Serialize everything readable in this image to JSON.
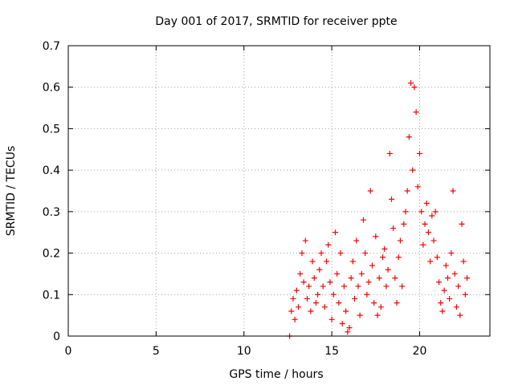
{
  "chart_data": {
    "type": "scatter",
    "title": "Day 001 of 2017, SRMTID for receiver ppte",
    "xlabel": "GPS time / hours",
    "ylabel": "SRMTID / TECUs",
    "xlim": [
      0,
      24
    ],
    "ylim": [
      0,
      0.7
    ],
    "xticks": [
      0,
      5,
      10,
      15,
      20
    ],
    "yticks": [
      0,
      0.1,
      0.2,
      0.3,
      0.4,
      0.5,
      0.6,
      0.7
    ],
    "xtick_labels": [
      "0",
      "5",
      "10",
      "15",
      "20"
    ],
    "ytick_labels": [
      "0",
      "0.1",
      "0.2",
      "0.3",
      "0.4",
      "0.5",
      "0.6",
      "0.7"
    ],
    "grid": true,
    "marker": "+",
    "series": [
      {
        "name": "SRMTID",
        "color": "#ff0000",
        "points": [
          [
            12.6,
            0.0
          ],
          [
            12.7,
            0.06
          ],
          [
            12.8,
            0.09
          ],
          [
            12.9,
            0.04
          ],
          [
            13.0,
            0.11
          ],
          [
            13.1,
            0.07
          ],
          [
            13.2,
            0.15
          ],
          [
            13.3,
            0.2
          ],
          [
            13.4,
            0.13
          ],
          [
            13.5,
            0.23
          ],
          [
            13.6,
            0.09
          ],
          [
            13.7,
            0.12
          ],
          [
            13.8,
            0.06
          ],
          [
            13.9,
            0.18
          ],
          [
            14.0,
            0.14
          ],
          [
            14.1,
            0.08
          ],
          [
            14.2,
            0.1
          ],
          [
            14.3,
            0.16
          ],
          [
            14.4,
            0.2
          ],
          [
            14.5,
            0.12
          ],
          [
            14.6,
            0.07
          ],
          [
            14.7,
            0.18
          ],
          [
            14.8,
            0.22
          ],
          [
            14.9,
            0.13
          ],
          [
            15.0,
            0.04
          ],
          [
            15.1,
            0.1
          ],
          [
            15.2,
            0.25
          ],
          [
            15.3,
            0.15
          ],
          [
            15.4,
            0.08
          ],
          [
            15.5,
            0.2
          ],
          [
            15.6,
            0.03
          ],
          [
            15.7,
            0.12
          ],
          [
            15.8,
            0.06
          ],
          [
            15.9,
            0.01
          ],
          [
            16.0,
            0.02
          ],
          [
            16.1,
            0.14
          ],
          [
            16.2,
            0.18
          ],
          [
            16.3,
            0.09
          ],
          [
            16.4,
            0.23
          ],
          [
            16.5,
            0.12
          ],
          [
            16.6,
            0.05
          ],
          [
            16.7,
            0.15
          ],
          [
            16.8,
            0.28
          ],
          [
            16.9,
            0.2
          ],
          [
            17.0,
            0.1
          ],
          [
            17.1,
            0.13
          ],
          [
            17.2,
            0.35
          ],
          [
            17.3,
            0.17
          ],
          [
            17.4,
            0.08
          ],
          [
            17.5,
            0.24
          ],
          [
            17.6,
            0.05
          ],
          [
            17.7,
            0.14
          ],
          [
            17.8,
            0.07
          ],
          [
            17.9,
            0.19
          ],
          [
            18.0,
            0.21
          ],
          [
            18.1,
            0.12
          ],
          [
            18.2,
            0.16
          ],
          [
            18.3,
            0.44
          ],
          [
            18.4,
            0.33
          ],
          [
            18.5,
            0.26
          ],
          [
            18.6,
            0.14
          ],
          [
            18.7,
            0.08
          ],
          [
            18.8,
            0.19
          ],
          [
            18.9,
            0.23
          ],
          [
            19.0,
            0.12
          ],
          [
            19.1,
            0.27
          ],
          [
            19.2,
            0.3
          ],
          [
            19.3,
            0.35
          ],
          [
            19.4,
            0.48
          ],
          [
            19.5,
            0.61
          ],
          [
            19.6,
            0.4
          ],
          [
            19.7,
            0.6
          ],
          [
            19.8,
            0.54
          ],
          [
            19.9,
            0.36
          ],
          [
            20.0,
            0.44
          ],
          [
            20.1,
            0.3
          ],
          [
            20.2,
            0.22
          ],
          [
            20.3,
            0.27
          ],
          [
            20.4,
            0.32
          ],
          [
            20.5,
            0.25
          ],
          [
            20.6,
            0.18
          ],
          [
            20.7,
            0.29
          ],
          [
            20.8,
            0.23
          ],
          [
            20.9,
            0.3
          ],
          [
            21.0,
            0.19
          ],
          [
            21.1,
            0.13
          ],
          [
            21.2,
            0.08
          ],
          [
            21.3,
            0.06
          ],
          [
            21.4,
            0.11
          ],
          [
            21.5,
            0.17
          ],
          [
            21.6,
            0.14
          ],
          [
            21.7,
            0.09
          ],
          [
            21.8,
            0.2
          ],
          [
            21.9,
            0.35
          ],
          [
            22.0,
            0.15
          ],
          [
            22.1,
            0.07
          ],
          [
            22.2,
            0.12
          ],
          [
            22.3,
            0.05
          ],
          [
            22.4,
            0.27
          ],
          [
            22.5,
            0.18
          ],
          [
            22.6,
            0.1
          ],
          [
            22.7,
            0.14
          ]
        ]
      }
    ]
  }
}
